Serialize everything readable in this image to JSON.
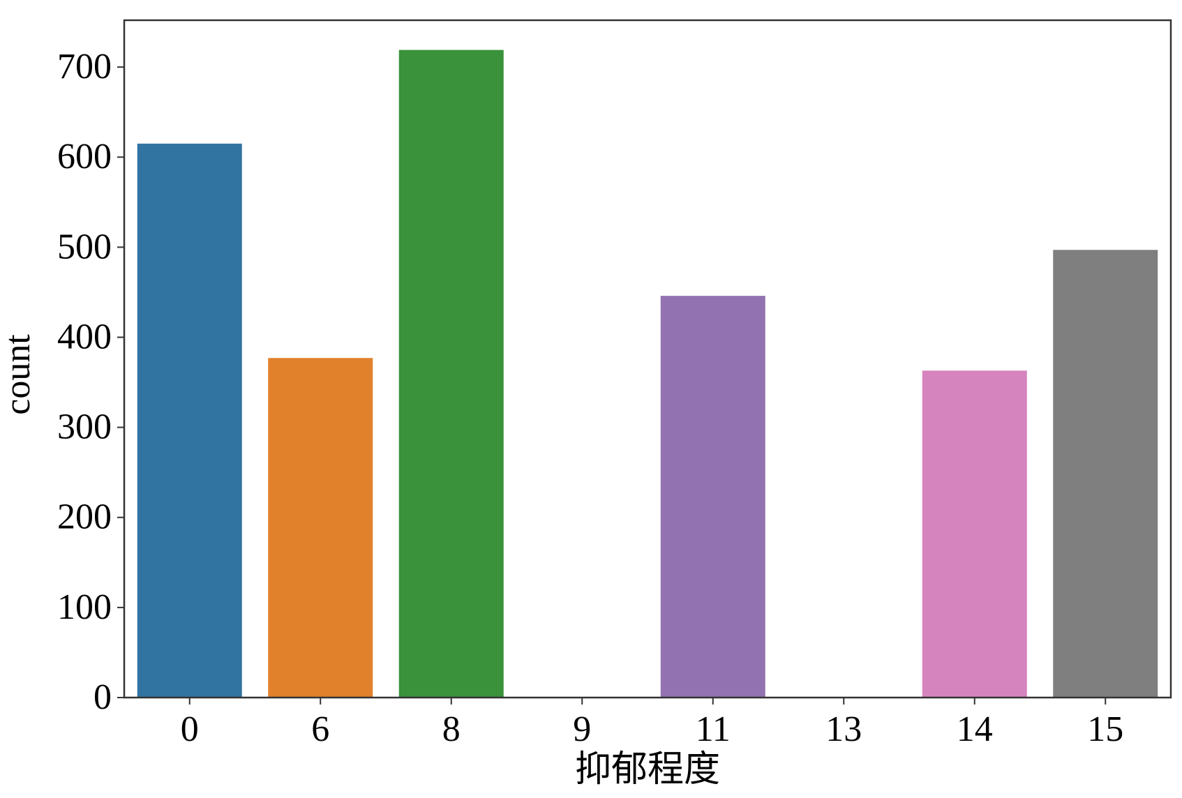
{
  "chart_data": {
    "type": "bar",
    "x_label": "抑郁程度",
    "y_label": "count",
    "categories": [
      "0",
      "6",
      "8",
      "9",
      "11",
      "13",
      "14",
      "15"
    ],
    "values": [
      615,
      377,
      719,
      0,
      446,
      0,
      363,
      497
    ],
    "colors": [
      "#3274a1",
      "#e1812c",
      "#3a923a",
      "#c03d3e",
      "#9372b2",
      "#845b53",
      "#d684bd",
      "#7f7f7f"
    ],
    "ylim": [
      0,
      752
    ],
    "yticks": [
      0,
      100,
      200,
      300,
      400,
      500,
      600,
      700
    ],
    "grid": false
  }
}
